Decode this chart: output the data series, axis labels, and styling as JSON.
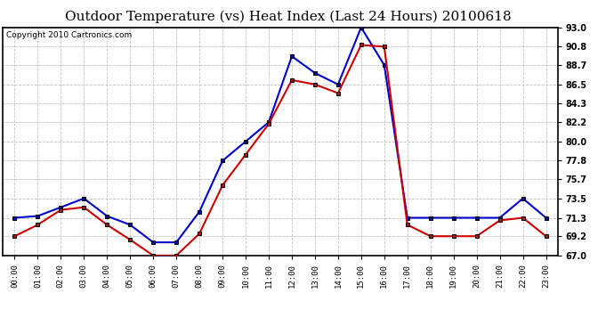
{
  "title": "Outdoor Temperature (vs) Heat Index (Last 24 Hours) 20100618",
  "copyright": "Copyright 2010 Cartronics.com",
  "x_labels": [
    "00:00",
    "01:00",
    "02:00",
    "03:00",
    "04:00",
    "05:00",
    "06:00",
    "07:00",
    "08:00",
    "09:00",
    "10:00",
    "11:00",
    "12:00",
    "13:00",
    "14:00",
    "15:00",
    "16:00",
    "17:00",
    "18:00",
    "19:00",
    "20:00",
    "21:00",
    "22:00",
    "23:00"
  ],
  "blue_data": [
    71.3,
    71.5,
    72.5,
    73.5,
    71.5,
    70.5,
    68.5,
    68.5,
    72.0,
    77.8,
    80.0,
    82.2,
    89.7,
    87.8,
    86.5,
    93.0,
    88.7,
    71.3,
    71.3,
    71.3,
    71.3,
    71.3,
    73.5,
    71.3
  ],
  "red_data": [
    69.2,
    70.5,
    72.2,
    72.5,
    70.5,
    68.8,
    67.0,
    67.0,
    69.5,
    75.0,
    78.5,
    82.0,
    87.0,
    86.5,
    85.5,
    91.0,
    90.8,
    70.5,
    69.2,
    69.2,
    69.2,
    71.0,
    71.3,
    69.2
  ],
  "ylim": [
    67.0,
    93.0
  ],
  "yticks": [
    67.0,
    69.2,
    71.3,
    73.5,
    75.7,
    77.8,
    80.0,
    82.2,
    84.3,
    86.5,
    88.7,
    90.8,
    93.0
  ],
  "blue_color": "#0000cc",
  "red_color": "#cc0000",
  "marker_color": "#000000",
  "grid_color": "#bbbbbb",
  "bg_color": "#ffffff",
  "title_fontsize": 11,
  "copyright_fontsize": 6.5
}
